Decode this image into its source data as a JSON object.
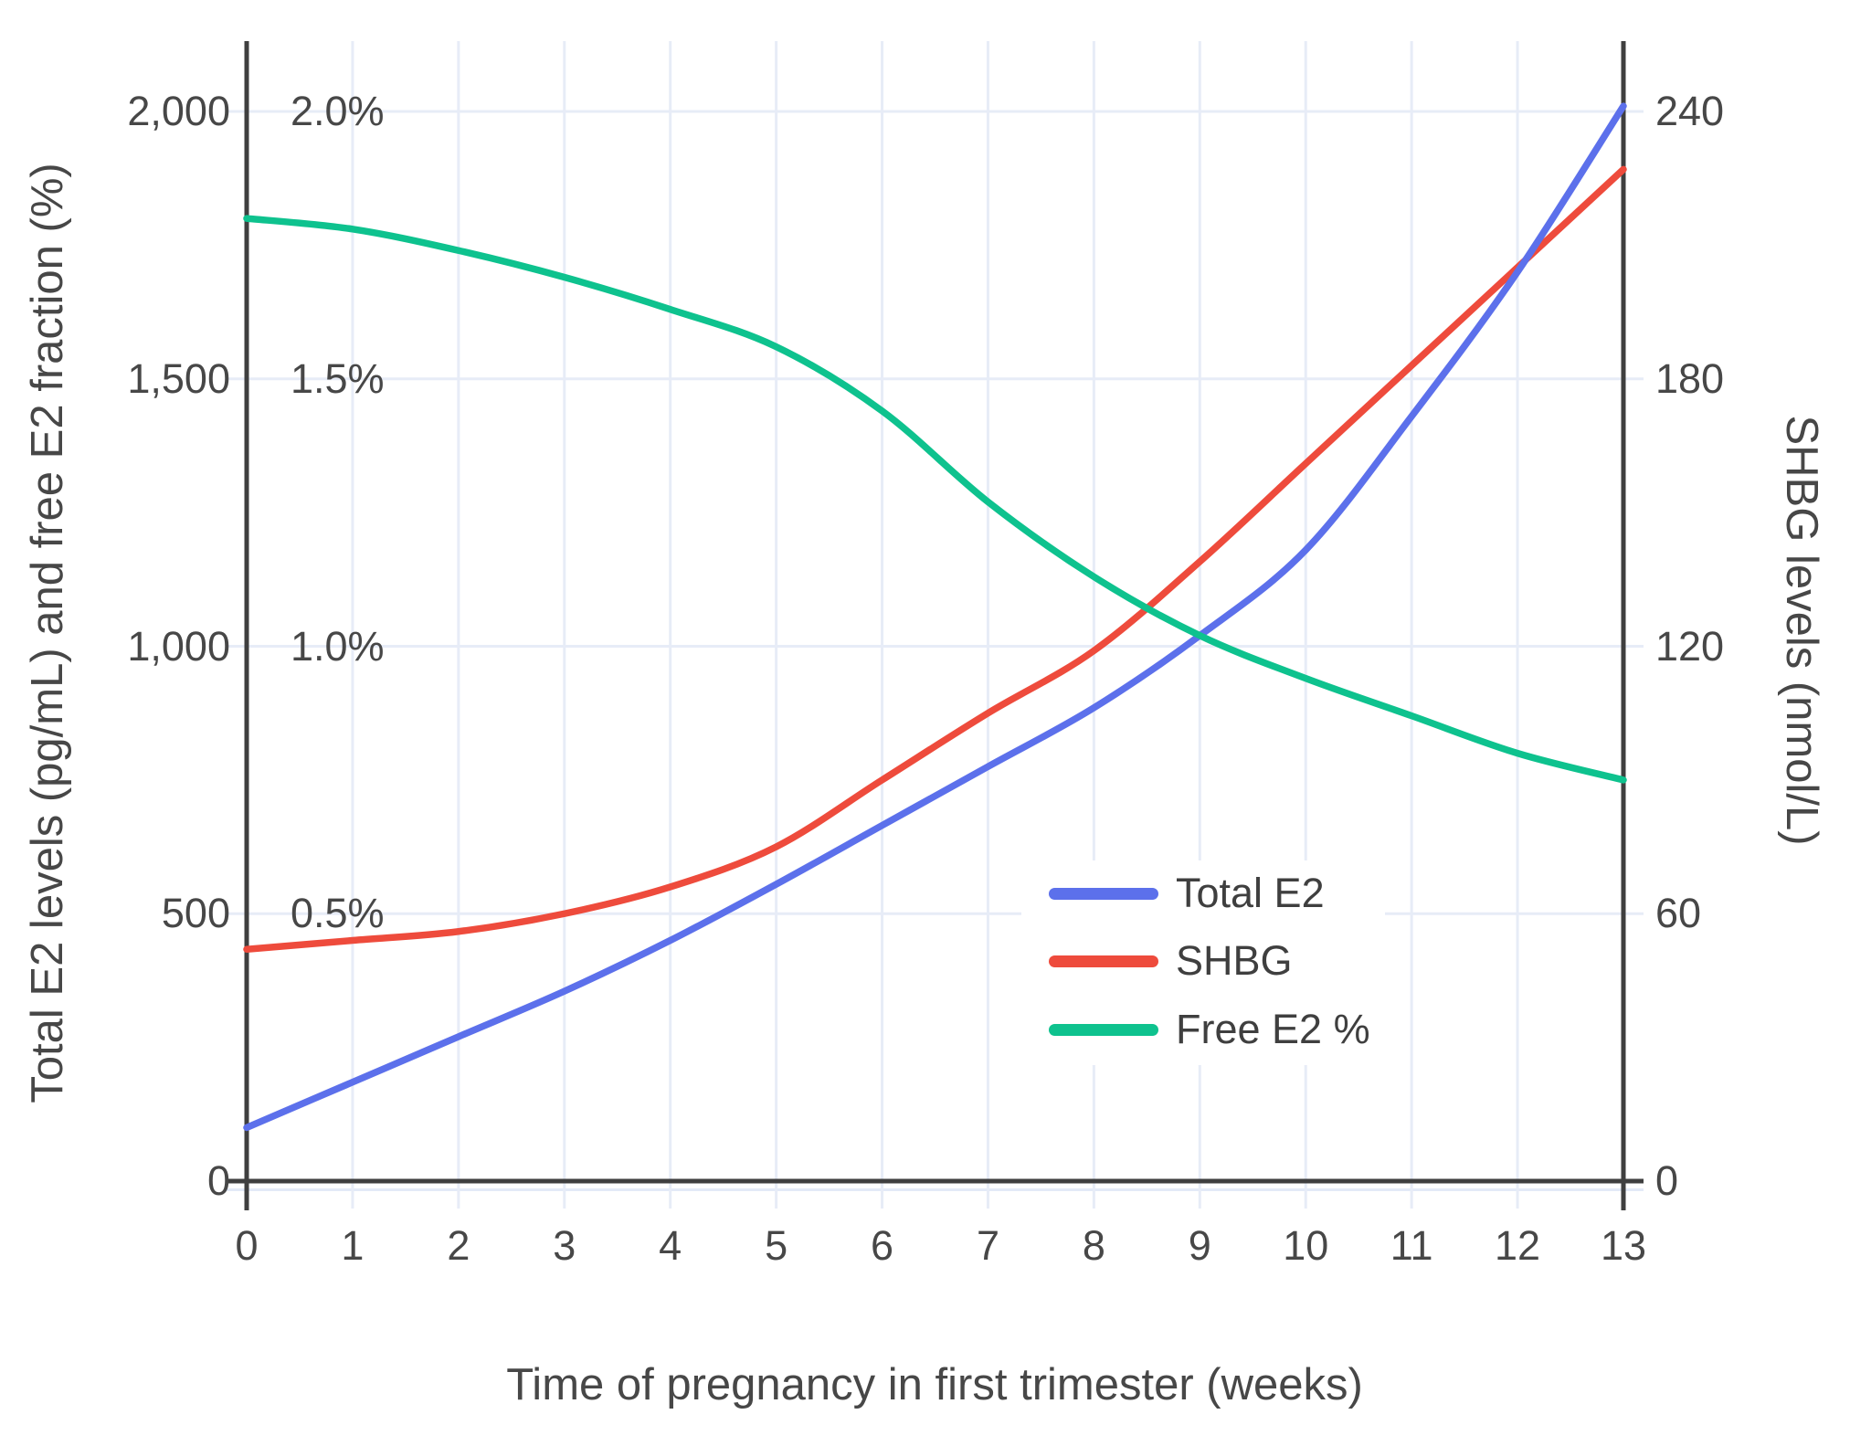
{
  "colors": {
    "background": "#ffffff",
    "grid": "#e7ecf7",
    "grid_shadow": "#e3eaf7",
    "axis": "#3f3f3f",
    "text": "#474747",
    "total_e2": "#5c70eb",
    "shbg": "#ee4b3c",
    "free_e2": "#0ec28e"
  },
  "chart_data": {
    "type": "line",
    "title": "",
    "xlabel": "Time of pregnancy in first trimester (weeks)",
    "ylabel_left": "Total E2 levels (pg/mL) and free E2 fraction (%)",
    "ylabel_right": "SHBG levels (nmol/L)",
    "grid": true,
    "legend_position": "inside-lower-right",
    "x": [
      0,
      1,
      2,
      3,
      4,
      5,
      6,
      7,
      8,
      9,
      10,
      11,
      12,
      13
    ],
    "x_tick_labels": [
      "0",
      "1",
      "2",
      "3",
      "4",
      "5",
      "6",
      "7",
      "8",
      "9",
      "10",
      "11",
      "12",
      "13"
    ],
    "axes": {
      "left": {
        "range": [
          0,
          2000
        ],
        "ticks": [
          0,
          500,
          1000,
          1500,
          2000
        ],
        "tick_labels": [
          "0",
          "500",
          "1,000",
          "1,500",
          "2,000"
        ]
      },
      "left_percent": {
        "range": [
          0,
          2.0
        ],
        "ticks": [
          0.5,
          1.0,
          1.5,
          2.0
        ],
        "tick_labels": [
          "0.5%",
          "1.0%",
          "1.5%",
          "2.0%"
        ]
      },
      "right": {
        "range": [
          0,
          240
        ],
        "ticks": [
          0,
          60,
          120,
          180,
          240
        ],
        "tick_labels": [
          "0",
          "60",
          "120",
          "180",
          "240"
        ]
      }
    },
    "series": [
      {
        "name": "Total E2",
        "axis": "left",
        "color": "#5c70eb",
        "values": [
          100,
          185,
          270,
          355,
          450,
          555,
          665,
          775,
          885,
          1020,
          1180,
          1430,
          1700,
          2010
        ]
      },
      {
        "name": "SHBG",
        "axis": "right",
        "color": "#ee4b3c",
        "values": [
          52,
          54,
          56,
          60,
          66,
          75,
          90,
          105,
          119,
          139,
          161,
          183,
          205,
          227
        ]
      },
      {
        "name": "Free E2 %",
        "axis": "left_percent",
        "color": "#0ec28e",
        "values": [
          1.8,
          1.78,
          1.74,
          1.69,
          1.63,
          1.56,
          1.44,
          1.27,
          1.13,
          1.02,
          0.94,
          0.87,
          0.8,
          0.75
        ]
      }
    ]
  }
}
